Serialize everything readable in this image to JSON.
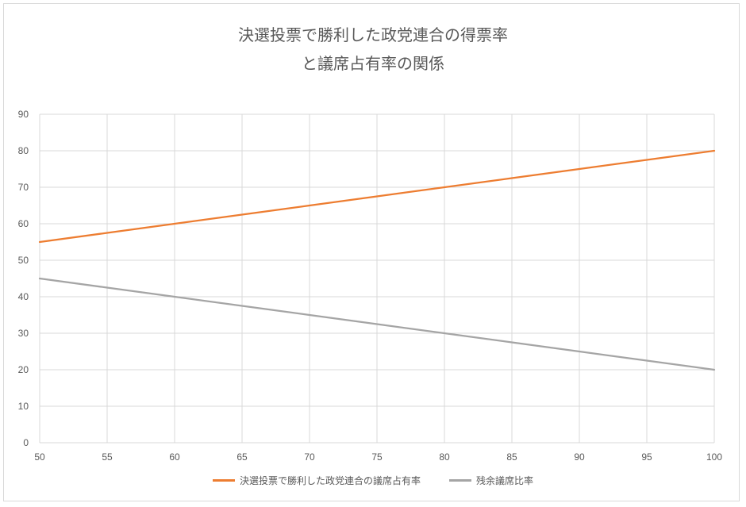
{
  "chart_data": {
    "type": "line",
    "title_lines": [
      "決選投票で勝利した政党連合の得票率",
      "と議席占有率の関係"
    ],
    "xlabel": "",
    "ylabel": "",
    "x": [
      50,
      55,
      60,
      65,
      70,
      75,
      80,
      85,
      90,
      95,
      100
    ],
    "xlim": [
      50,
      100
    ],
    "ylim": [
      0,
      90
    ],
    "x_ticks": [
      50,
      55,
      60,
      65,
      70,
      75,
      80,
      85,
      90,
      95,
      100
    ],
    "y_ticks": [
      0,
      10,
      20,
      30,
      40,
      50,
      60,
      70,
      80,
      90
    ],
    "grid": true,
    "legend_position": "bottom",
    "series": [
      {
        "name": "決選投票で勝利した政党連合の議席占有率",
        "color": "#ED7D31",
        "values": [
          55,
          57.5,
          60,
          62.5,
          65,
          67.5,
          70,
          72.5,
          75,
          77.5,
          80
        ]
      },
      {
        "name": "残余議席比率",
        "color": "#A5A5A5",
        "values": [
          45,
          42.5,
          40,
          37.5,
          35,
          32.5,
          30,
          27.5,
          25,
          22.5,
          20
        ]
      }
    ]
  }
}
